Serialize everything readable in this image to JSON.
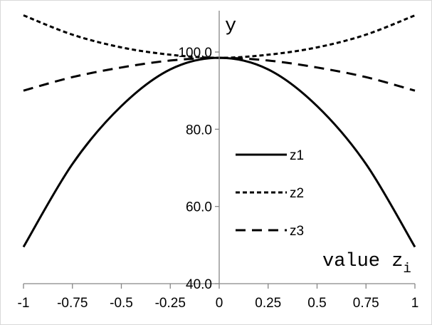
{
  "chart_data": {
    "type": "line",
    "title": "",
    "xlabel_main": "value z",
    "xlabel_sub": "i",
    "ylabel": "y",
    "xlim": [
      -1,
      1
    ],
    "ylim": [
      40,
      110
    ],
    "x_ticks": [
      "-1",
      "-0.75",
      "-0.5",
      "-0.25",
      "0",
      "0.25",
      "0.5",
      "0.75",
      "1"
    ],
    "x_tick_values": [
      -1,
      -0.75,
      -0.5,
      -0.25,
      0,
      0.25,
      0.5,
      0.75,
      1
    ],
    "y_ticks": [
      "40.0",
      "60.0",
      "80.0",
      "100.0"
    ],
    "y_tick_values": [
      40,
      60,
      80,
      100
    ],
    "grid": false,
    "legend_position": "center-right",
    "x": [
      -1,
      -0.75,
      -0.5,
      -0.25,
      0,
      0.25,
      0.5,
      0.75,
      1
    ],
    "series": [
      {
        "name": "z1",
        "dash": "solid",
        "values": [
          49.5,
          71.0,
          86.0,
          95.5,
          98.5,
          95.5,
          86.0,
          71.0,
          49.5
        ]
      },
      {
        "name": "z2",
        "dash": "dotted",
        "values": [
          109.5,
          104.5,
          101.2,
          99.3,
          98.5,
          99.3,
          101.2,
          104.5,
          109.5
        ]
      },
      {
        "name": "z3",
        "dash": "dashed",
        "values": [
          90.0,
          93.5,
          96.0,
          97.8,
          98.5,
          97.8,
          96.0,
          93.5,
          90.0
        ]
      }
    ]
  }
}
